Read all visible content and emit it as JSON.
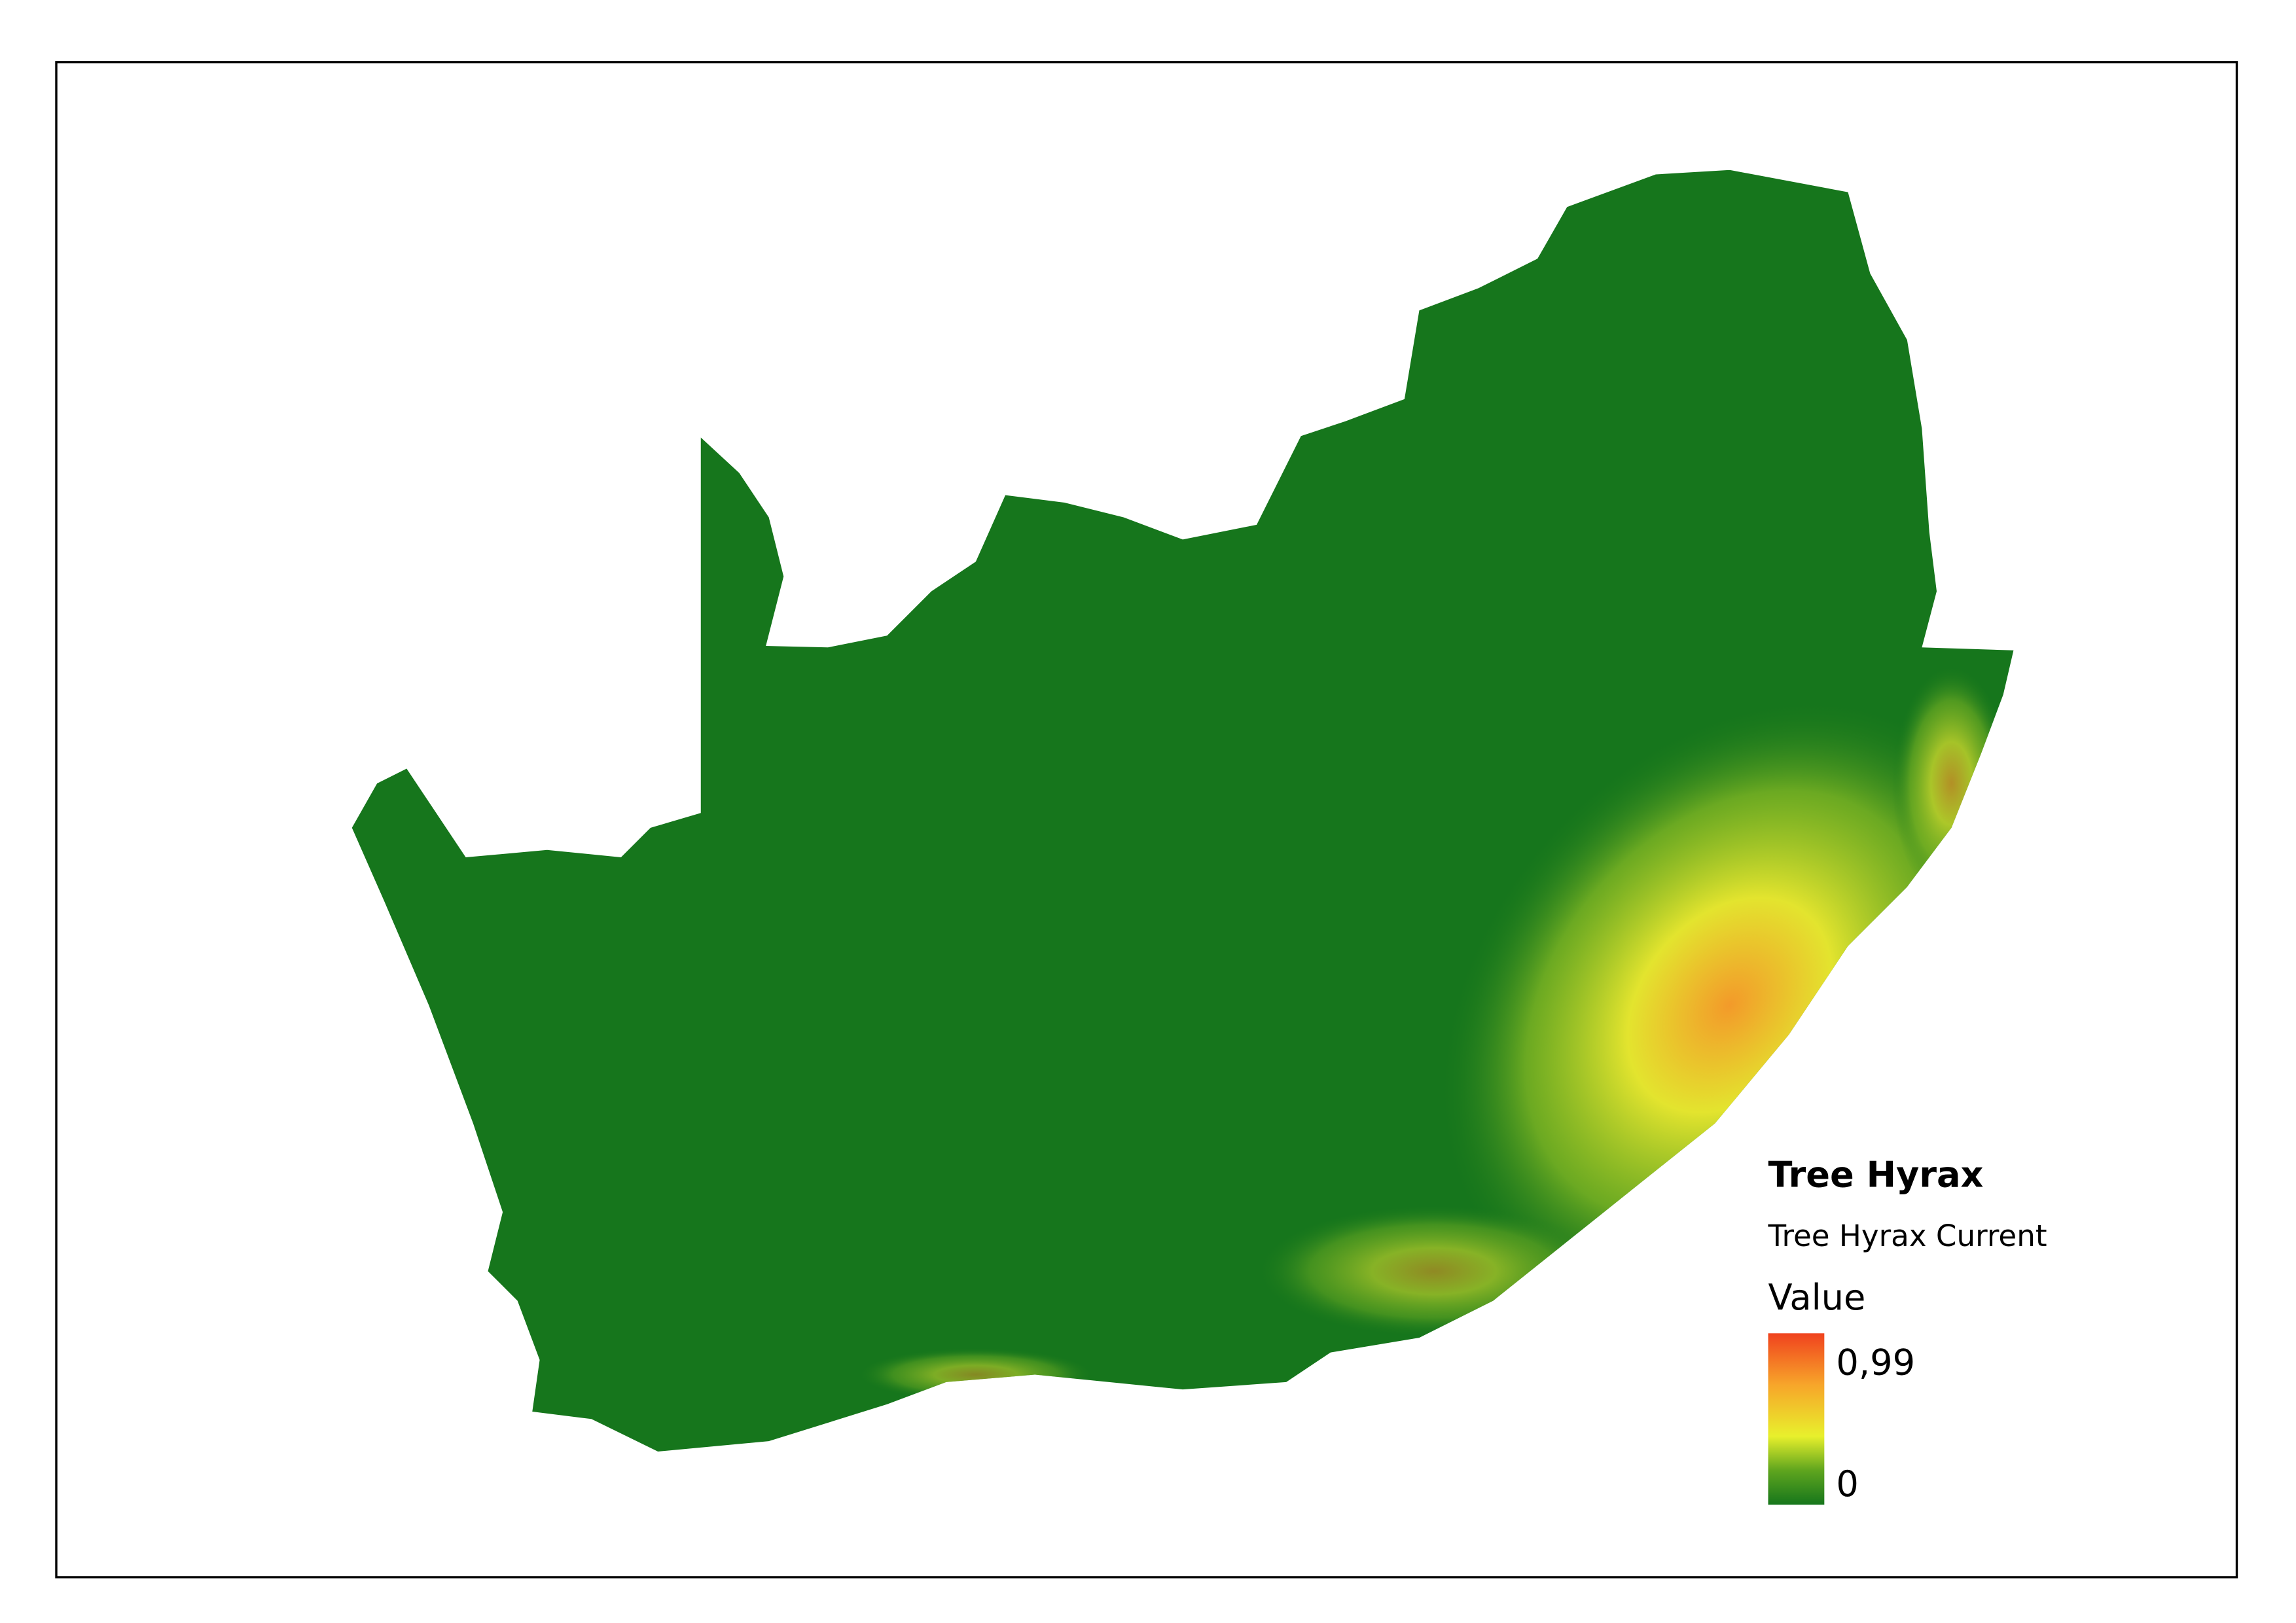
{
  "legend": {
    "layer": "Tree Hyrax",
    "band": "Tree Hyrax Current",
    "title": "Value",
    "max_label": "0,99",
    "min_label": "0"
  }
}
